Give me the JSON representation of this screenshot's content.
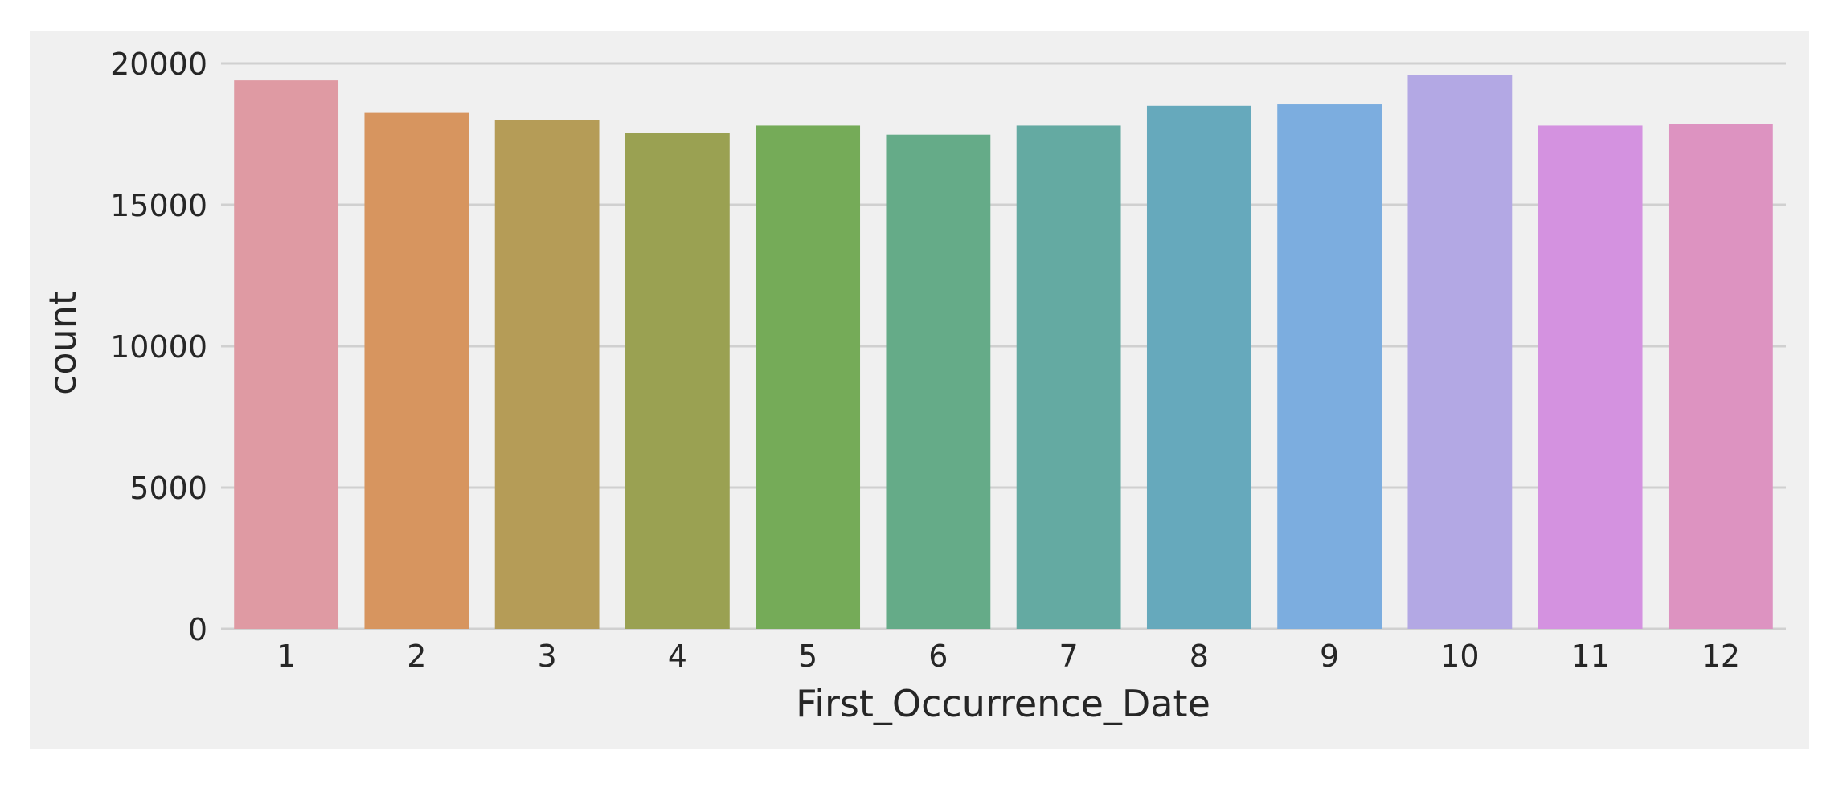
{
  "chart_data": {
    "type": "bar",
    "title": "",
    "xlabel": "First_Occurrence_Date",
    "ylabel": "count",
    "categories": [
      "1",
      "2",
      "3",
      "4",
      "5",
      "6",
      "7",
      "8",
      "9",
      "10",
      "11",
      "12"
    ],
    "values": [
      19400,
      18250,
      18000,
      17550,
      17800,
      17480,
      17800,
      18500,
      18550,
      19600,
      17800,
      17850
    ],
    "bar_colors": [
      "#df9aa3",
      "#d7955f",
      "#b59c57",
      "#9aa152",
      "#75ab58",
      "#65ab88",
      "#64aaa2",
      "#66a9bc",
      "#7caddf",
      "#b3a8e4",
      "#d492e0",
      "#dd93c1"
    ],
    "ylim": [
      0,
      20000
    ],
    "yticks": [
      0,
      5000,
      10000,
      15000,
      20000
    ],
    "grid": "horizontal",
    "legend": "none",
    "background": "#f0f0f0",
    "grid_color": "#d0d0d0"
  }
}
